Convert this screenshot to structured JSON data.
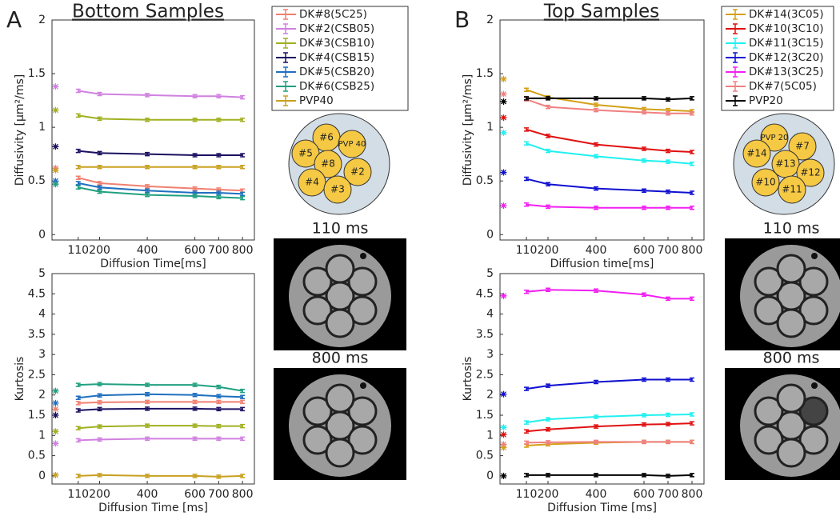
{
  "panels": [
    {
      "letter": "A",
      "title": "Bottom Samples",
      "phantom": [
        {
          "label": "#6"
        },
        {
          "label": "PVP 40"
        },
        {
          "label": "#5"
        },
        {
          "label": "#8"
        },
        {
          "label": "#2"
        },
        {
          "label": "#4"
        },
        {
          "label": "#3"
        }
      ],
      "image_labels": [
        "110 ms",
        "800 ms"
      ]
    },
    {
      "letter": "B",
      "title": "Top Samples",
      "phantom": [
        {
          "label": "PVP 20"
        },
        {
          "label": "#7"
        },
        {
          "label": "#14"
        },
        {
          "label": "#13"
        },
        {
          "label": "#12"
        },
        {
          "label": "#10"
        },
        {
          "label": "#11"
        }
      ],
      "image_labels": [
        "110 ms",
        "800 ms"
      ]
    }
  ],
  "chart_data": [
    {
      "type": "line",
      "xlabel": "Diffusion Time[ms]",
      "ylabel": "Diffusivity [μm²/ms]",
      "x": [
        110,
        200,
        400,
        600,
        700,
        800
      ],
      "xlim": [
        0,
        850
      ],
      "xticks": [
        110,
        200,
        400,
        600,
        700,
        800
      ],
      "ylim": [
        -0.05,
        2
      ],
      "yticks": [
        0,
        0.5,
        1,
        1.5,
        2
      ],
      "star_x": 15,
      "legend": "right",
      "series": [
        {
          "name": "DK#8(5C25)",
          "color": "#f08070",
          "values": [
            0.53,
            0.48,
            0.45,
            0.43,
            0.42,
            0.41
          ],
          "star": 0.62
        },
        {
          "name": "DK#2(CSB05)",
          "color": "#d080e0",
          "values": [
            1.34,
            1.31,
            1.3,
            1.29,
            1.29,
            1.28
          ],
          "star": 1.38
        },
        {
          "name": "DK#3(CSB10)",
          "color": "#a0b020",
          "values": [
            1.11,
            1.08,
            1.07,
            1.07,
            1.07,
            1.07
          ],
          "star": 1.16
        },
        {
          "name": "DK#4(CSB15)",
          "color": "#1a1060",
          "values": [
            0.78,
            0.76,
            0.75,
            0.74,
            0.74,
            0.74
          ],
          "star": 0.82
        },
        {
          "name": "DK#5(CSB20)",
          "color": "#1f6fbf",
          "values": [
            0.48,
            0.44,
            0.41,
            0.39,
            0.39,
            0.38
          ],
          "star": 0.5
        },
        {
          "name": "DK#6(CSB25)",
          "color": "#20a080",
          "values": [
            0.44,
            0.4,
            0.37,
            0.36,
            0.35,
            0.34
          ],
          "star": 0.47
        },
        {
          "name": "PVP40",
          "color": "#c8a020",
          "values": [
            0.63,
            0.63,
            0.63,
            0.63,
            0.63,
            0.63
          ],
          "star": 0.6
        }
      ]
    },
    {
      "type": "line",
      "xlabel": "Diffusion Time [ms]",
      "ylabel": "Kurtosis",
      "x": [
        110,
        200,
        400,
        600,
        700,
        800
      ],
      "xlim": [
        0,
        850
      ],
      "xticks": [
        110,
        200,
        400,
        600,
        700,
        800
      ],
      "ylim": [
        -0.2,
        5
      ],
      "yticks": [
        0,
        0.5,
        1,
        1.5,
        2,
        2.5,
        3,
        3.5,
        4,
        4.5,
        5
      ],
      "star_x": 15,
      "series": [
        {
          "color": "#f08070",
          "values": [
            1.8,
            1.82,
            1.83,
            1.83,
            1.83,
            1.83
          ],
          "star": 1.65
        },
        {
          "color": "#d080e0",
          "values": [
            0.88,
            0.9,
            0.92,
            0.92,
            0.92,
            0.92
          ],
          "star": 0.8
        },
        {
          "color": "#a0b020",
          "values": [
            1.18,
            1.22,
            1.24,
            1.24,
            1.23,
            1.23
          ],
          "star": 1.1
        },
        {
          "color": "#1a1060",
          "values": [
            1.62,
            1.65,
            1.66,
            1.66,
            1.65,
            1.65
          ],
          "star": 1.5
        },
        {
          "color": "#1f6fbf",
          "values": [
            1.93,
            1.99,
            2.02,
            2,
            1.97,
            1.95
          ],
          "star": 1.8
        },
        {
          "color": "#20a080",
          "values": [
            2.25,
            2.27,
            2.25,
            2.25,
            2.2,
            2.1
          ],
          "star": 2.1
        },
        {
          "color": "#c8a020",
          "values": [
            0,
            0.02,
            0,
            0,
            -0.02,
            0
          ],
          "star": 0.02
        }
      ]
    },
    {
      "type": "line",
      "xlabel": "Diffusion time[ms]",
      "ylabel": "Diffusivity [μm²/ms]",
      "x": [
        110,
        200,
        400,
        600,
        700,
        800
      ],
      "xlim": [
        0,
        850
      ],
      "xticks": [
        110,
        200,
        400,
        600,
        700,
        800
      ],
      "ylim": [
        -0.05,
        2
      ],
      "yticks": [
        0,
        0.5,
        1,
        1.5,
        2
      ],
      "star_x": 15,
      "legend": "right",
      "series": [
        {
          "name": "DK#14(3C05)",
          "color": "#d4a017",
          "values": [
            1.35,
            1.28,
            1.21,
            1.17,
            1.16,
            1.15
          ],
          "star": 1.45
        },
        {
          "name": "DK#10(3C10)",
          "color": "#e01010",
          "values": [
            0.98,
            0.92,
            0.84,
            0.8,
            0.78,
            0.77
          ],
          "star": 1.09
        },
        {
          "name": "DK#11(3C15)",
          "color": "#20f0f0",
          "values": [
            0.85,
            0.78,
            0.73,
            0.69,
            0.68,
            0.66
          ],
          "star": 0.95
        },
        {
          "name": "DK#12(3C20)",
          "color": "#1010d0",
          "values": [
            0.52,
            0.47,
            0.43,
            0.41,
            0.4,
            0.39
          ],
          "star": 0.58
        },
        {
          "name": "DK#13(3C25)",
          "color": "#f020f0",
          "values": [
            0.28,
            0.26,
            0.25,
            0.25,
            0.25,
            0.25
          ],
          "star": 0.27
        },
        {
          "name": "DK#7(5C05)",
          "color": "#f08080",
          "values": [
            1.26,
            1.19,
            1.16,
            1.14,
            1.13,
            1.13
          ],
          "star": 1.31
        },
        {
          "name": "PVP20",
          "color": "#000000",
          "values": [
            1.27,
            1.27,
            1.27,
            1.27,
            1.26,
            1.27
          ],
          "star": 1.24
        }
      ]
    },
    {
      "type": "line",
      "xlabel": "Diffusion Time [ms]",
      "ylabel": "Kurtosis",
      "x": [
        110,
        200,
        400,
        600,
        700,
        800
      ],
      "xlim": [
        0,
        850
      ],
      "xticks": [
        110,
        200,
        400,
        600,
        700,
        800
      ],
      "ylim": [
        -0.2,
        5
      ],
      "yticks": [
        0,
        0.5,
        1,
        1.5,
        2,
        2.5,
        3,
        3.5,
        4,
        4.5,
        5
      ],
      "star_x": 15,
      "series": [
        {
          "color": "#d4a017",
          "values": [
            0.75,
            0.78,
            0.82,
            0.84,
            0.84,
            0.84
          ],
          "star": 0.7
        },
        {
          "color": "#e01010",
          "values": [
            1.1,
            1.15,
            1.22,
            1.27,
            1.28,
            1.3
          ],
          "star": 1.02
        },
        {
          "color": "#20f0f0",
          "values": [
            1.32,
            1.4,
            1.46,
            1.5,
            1.51,
            1.52
          ],
          "star": 1.2
        },
        {
          "color": "#1010d0",
          "values": [
            2.15,
            2.23,
            2.32,
            2.38,
            2.38,
            2.38
          ],
          "star": 2.02
        },
        {
          "color": "#f020f0",
          "values": [
            4.55,
            4.6,
            4.58,
            4.48,
            4.38,
            4.38
          ],
          "star": 4.45
        },
        {
          "color": "#f08080",
          "values": [
            0.82,
            0.83,
            0.84,
            0.84,
            0.84,
            0.84
          ],
          "star": 0.78
        },
        {
          "color": "#000000",
          "values": [
            0.02,
            0.02,
            0.02,
            0.02,
            0,
            0.02
          ],
          "star": 0
        }
      ]
    }
  ]
}
